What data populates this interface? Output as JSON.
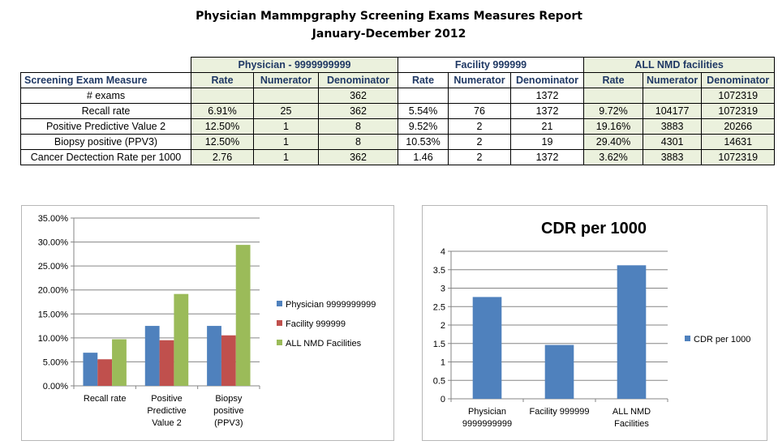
{
  "report": {
    "title": "Physician Mammpgraphy Screening Exams Measures Report",
    "subtitle": "January-December 2012"
  },
  "table": {
    "groups": [
      "Physician - 9999999999",
      "Facility 999999",
      "ALL NMD facilities"
    ],
    "measure_header": "Screening Exam Measure",
    "col_headers": [
      "Rate",
      "Numerator",
      "Denominator",
      "Rate",
      "Numerator",
      "Denominator",
      "Rate",
      "Numerator",
      "Denominator"
    ],
    "rows": [
      {
        "label": "# exams",
        "cells": [
          "",
          "",
          "362",
          "",
          "",
          "1372",
          "",
          "",
          "1072319"
        ]
      },
      {
        "label": "Recall rate",
        "cells": [
          "6.91%",
          "25",
          "362",
          "5.54%",
          "76",
          "1372",
          "9.72%",
          "104177",
          "1072319"
        ]
      },
      {
        "label": "Positive Predictive Value 2",
        "cells": [
          "12.50%",
          "1",
          "8",
          "9.52%",
          "2",
          "21",
          "19.16%",
          "3883",
          "20266"
        ]
      },
      {
        "label": "Biopsy positive (PPV3)",
        "cells": [
          "12.50%",
          "1",
          "8",
          "10.53%",
          "2",
          "19",
          "29.40%",
          "4301",
          "14631"
        ]
      },
      {
        "label": "Cancer Dectection Rate per 1000",
        "cells": [
          "2.76",
          "1",
          "362",
          "1.46",
          "2",
          "1372",
          "3.62%",
          "3883",
          "1072319"
        ]
      }
    ]
  },
  "chart_data": [
    {
      "type": "bar",
      "title": "",
      "categories": [
        "Recall rate",
        "Positive Predictive Value 2",
        "Biopsy positive (PPV3)"
      ],
      "category_lines": [
        [
          "Recall rate"
        ],
        [
          "Positive",
          "Predictive",
          "Value 2"
        ],
        [
          "Biopsy",
          "positive",
          "(PPV3)"
        ]
      ],
      "series": [
        {
          "name": "Physician 9999999999",
          "color": "#4f81bd",
          "values": [
            6.91,
            12.5,
            12.5
          ]
        },
        {
          "name": "Facility 999999",
          "color": "#c0504d",
          "values": [
            5.54,
            9.52,
            10.53
          ]
        },
        {
          "name": "ALL NMD Facilities",
          "color": "#9bbb59",
          "values": [
            9.72,
            19.16,
            29.4
          ]
        }
      ],
      "ylim": [
        0,
        35
      ],
      "yticks": [
        "0.00%",
        "5.00%",
        "10.00%",
        "15.00%",
        "20.00%",
        "25.00%",
        "30.00%",
        "35.00%"
      ],
      "legend": "right",
      "grid": true
    },
    {
      "type": "bar",
      "title": "CDR per 1000",
      "categories": [
        "Physician 9999999999",
        "Facility 999999",
        "ALL NMD Facilities"
      ],
      "category_lines": [
        [
          "Physician",
          "9999999999"
        ],
        [
          "Facility 999999"
        ],
        [
          "ALL NMD",
          "Facilities"
        ]
      ],
      "series": [
        {
          "name": "CDR per 1000",
          "color": "#4f81bd",
          "values": [
            2.76,
            1.46,
            3.62
          ]
        }
      ],
      "ylim": [
        0,
        4
      ],
      "yticks": [
        "0",
        "0.5",
        "1",
        "1.5",
        "2",
        "2.5",
        "3",
        "3.5",
        "4"
      ],
      "legend": "right",
      "grid": true
    }
  ]
}
